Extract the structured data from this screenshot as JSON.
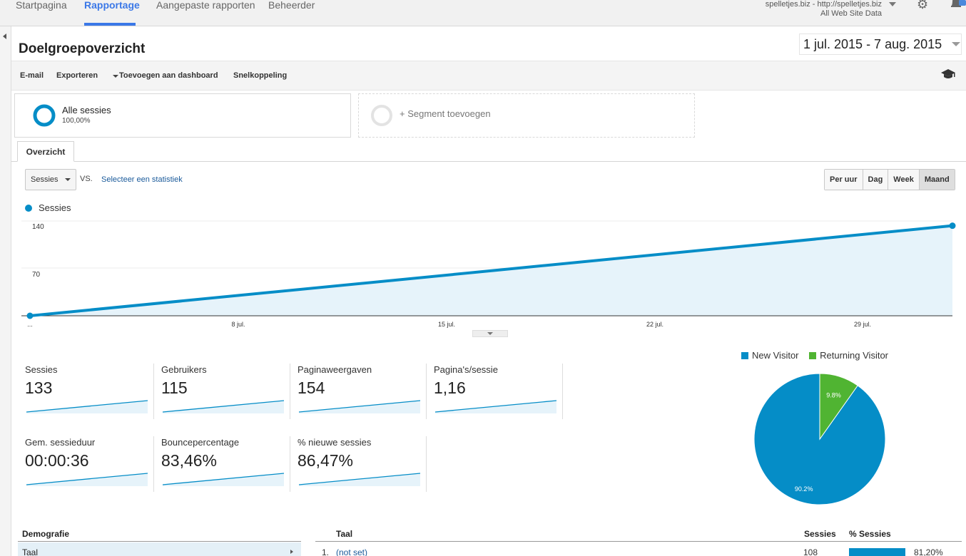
{
  "nav": {
    "tabs": [
      {
        "label": "Startpagina"
      },
      {
        "label": "Rapportage"
      },
      {
        "label": "Aangepaste rapporten"
      },
      {
        "label": "Beheerder"
      }
    ],
    "active_tab": "Rapportage",
    "account_line1": "spelletjes.biz - http://spelletjes.biz",
    "account_line2": "All Web Site Data",
    "icons": [
      "gear-icon",
      "bell-icon"
    ]
  },
  "page": {
    "title": "Doelgroepoverzicht",
    "date_range": "1 jul. 2015 - 7 aug. 2015"
  },
  "toolbar": {
    "email": "E-mail",
    "export": "Exporteren",
    "add_dashboard": "Toevoegen aan dashboard",
    "shortcut": "Snelkoppeling",
    "icon": "graduation-cap-icon"
  },
  "segments": {
    "all_label": "Alle sessies",
    "all_pct": "100,00%",
    "add_label": "+ Segment toevoegen"
  },
  "tabs": {
    "overview": "Overzicht"
  },
  "controls": {
    "metric": "Sessies",
    "vs": "VS.",
    "select_stat": "Selecteer een statistiek",
    "granularity": [
      "Per uur",
      "Dag",
      "Week",
      "Maand"
    ],
    "active_granularity": "Maand"
  },
  "chart_data": {
    "type": "area",
    "series": [
      {
        "name": "Sessies",
        "color": "#058dc7"
      }
    ],
    "y_ticks": [
      "140",
      "70"
    ],
    "x_ticks": [
      "...",
      "8 jul.",
      "15 jul.",
      "22 jul.",
      "29 jul."
    ],
    "ylim": [
      0,
      140
    ],
    "points": [
      {
        "x": "1 jul. 2015",
        "y": 0
      },
      {
        "x": "1 aug. 2015",
        "y": 133
      }
    ]
  },
  "metrics": [
    {
      "label": "Sessies",
      "value": "133"
    },
    {
      "label": "Gebruikers",
      "value": "115"
    },
    {
      "label": "Paginaweergaven",
      "value": "154"
    },
    {
      "label": "Pagina's/sessie",
      "value": "1,16"
    },
    {
      "label": "Gem. sessieduur",
      "value": "00:00:36"
    },
    {
      "label": "Bouncepercentage",
      "value": "83,46%"
    },
    {
      "label": "% nieuwe sessies",
      "value": "86,47%"
    }
  ],
  "pie_chart": {
    "type": "pie",
    "slices": [
      {
        "name": "New Visitor",
        "value": 90.2,
        "label": "90.2%",
        "color": "#058dc7"
      },
      {
        "name": "Returning Visitor",
        "value": 9.8,
        "label": "9.8%",
        "color": "#50b432"
      }
    ]
  },
  "demographics": {
    "header": "Demografie",
    "row": "Taal"
  },
  "table": {
    "col_title": "Taal",
    "col_sessions": "Sessies",
    "col_pct": "% Sessies",
    "row": {
      "index": "1.",
      "name": "(not set)",
      "sessions": "108",
      "pct": "81,20%",
      "pct_value": 81.2
    }
  }
}
